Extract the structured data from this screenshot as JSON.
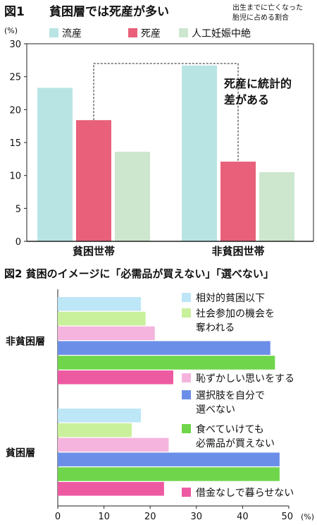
{
  "chart_data": [
    {
      "type": "bar",
      "figure_label": "図1",
      "title": "貧困層では死産が多い",
      "subtitle": [
        "出生までに亡くなった",
        "胎児に占める割合"
      ],
      "ylabel": "(%)",
      "ylim": [
        0,
        30
      ],
      "yticks": [
        "0",
        "5",
        "10",
        "15",
        "20",
        "25",
        "30"
      ],
      "legend_position": "top",
      "categories": [
        "貧困世帯",
        "非貧困世帯"
      ],
      "series": [
        {
          "name": "流産",
          "values": [
            23.3,
            26.7
          ],
          "color": "#b9e4e4"
        },
        {
          "name": "死産",
          "values": [
            18.4,
            12.1
          ],
          "color": "#e8607a"
        },
        {
          "name": "人工妊娠中絶",
          "values": [
            13.6,
            10.5
          ],
          "color": "#cde7cf"
        }
      ],
      "annotation": [
        "死産に統計的",
        "差がある"
      ]
    },
    {
      "type": "bar",
      "orientation": "horizontal",
      "figure_label": "図2",
      "title": "貧困のイメージに「必需品が買えない」「選べない」",
      "xlabel": "(%)",
      "xlim": [
        0,
        50
      ],
      "xticks": [
        "0",
        "10",
        "20",
        "30",
        "40",
        "50"
      ],
      "categories": [
        "非貧困層",
        "貧困層"
      ],
      "series": [
        {
          "name": "相対的貧困以下",
          "values": [
            18,
            18
          ],
          "color": "#bde6f7"
        },
        {
          "name": "社会参加の機会を奪われる",
          "label_lines": [
            "社会参加の機会を",
            "奪われる"
          ],
          "values": [
            19,
            16
          ],
          "color": "#c9f09a"
        },
        {
          "name": "恥ずかしい思いをする",
          "values": [
            21,
            24
          ],
          "color": "#f5b4dd"
        },
        {
          "name": "選択肢を自分で選べない",
          "label_lines": [
            "選択肢を自分で",
            "選べない"
          ],
          "values": [
            46,
            48
          ],
          "color": "#6b8fe8"
        },
        {
          "name": "食べていけても必需品が買えない",
          "label_lines": [
            "食べていけても",
            "必需品が買えない"
          ],
          "values": [
            47,
            48
          ],
          "color": "#6fd54a"
        },
        {
          "name": "借金なしで暮らせない",
          "values": [
            25,
            23
          ],
          "color": "#ee5aa2"
        }
      ]
    }
  ]
}
